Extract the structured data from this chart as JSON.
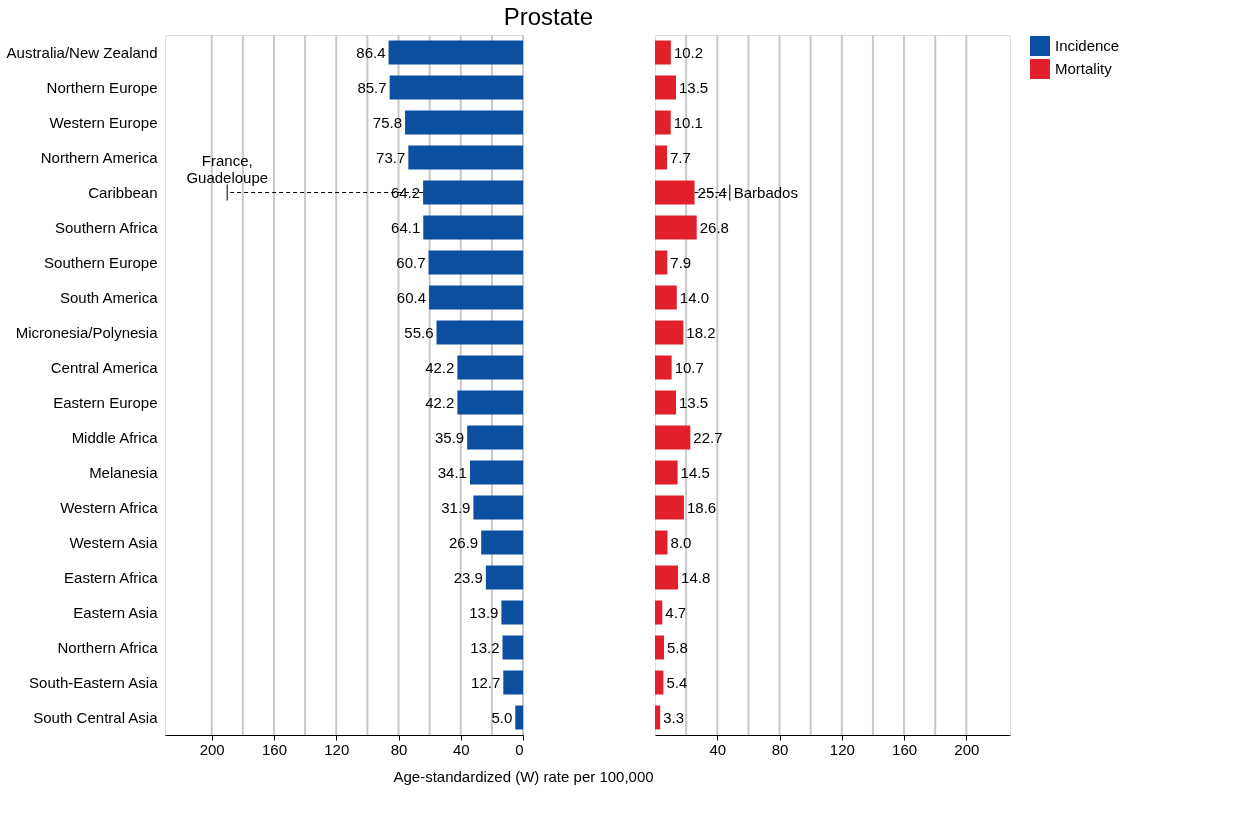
{
  "chart_data": [
    {
      "type": "bar",
      "orientation": "horizontal",
      "title": "Prostate",
      "xlabel": "Age-standardized (W) rate per 100,000",
      "categories": [
        "Australia/New Zealand",
        "Northern Europe",
        "Western Europe",
        "Northern America",
        "Caribbean",
        "Southern Africa",
        "Southern Europe",
        "South America",
        "Micronesia/Polynesia",
        "Central America",
        "Eastern Europe",
        "Middle Africa",
        "Melanesia",
        "Western Africa",
        "Western Asia",
        "Eastern Africa",
        "Eastern Asia",
        "Northern Africa",
        "South-Eastern Asia",
        "South Central Asia"
      ],
      "series": [
        {
          "name": "Incidence",
          "color": "#0b4f9f",
          "values": [
            86.4,
            85.7,
            75.8,
            73.7,
            64.2,
            64.1,
            60.7,
            60.4,
            55.6,
            42.2,
            42.2,
            35.9,
            34.1,
            31.9,
            26.9,
            23.9,
            13.9,
            13.2,
            12.7,
            5.0
          ],
          "value_labels": [
            "86.4",
            "85.7",
            "75.8",
            "73.7",
            "64.2",
            "64.1",
            "60.7",
            "60.4",
            "55.6",
            "42.2",
            "42.2",
            "35.9",
            "34.1",
            "31.9",
            "26.9",
            "23.9",
            "13.9",
            "13.2",
            "12.7",
            "5.0"
          ],
          "errors": [
            null,
            null,
            null,
            null,
            [
              64.2,
              190
            ],
            null,
            null,
            null,
            null,
            null,
            null,
            null,
            null,
            null,
            null,
            null,
            null,
            null,
            null,
            null
          ]
        }
      ],
      "annotations": [
        {
          "text": "France, Guadeloupe",
          "x": 190,
          "y": "Caribbean"
        }
      ],
      "xlim": [
        230,
        0
      ],
      "xticks": [
        200,
        {
          "value": 180,
          "label": null
        },
        160,
        {
          "value": 140,
          "label": null
        },
        120,
        {
          "value": 100,
          "label": null
        },
        80,
        {
          "value": 60,
          "label": null
        },
        40,
        {
          "value": 20,
          "label": null
        },
        0
      ],
      "grid": "x",
      "legend": "right"
    },
    {
      "type": "bar",
      "orientation": "horizontal",
      "categories": [
        "Australia/New Zealand",
        "Northern Europe",
        "Western Europe",
        "Northern America",
        "Caribbean",
        "Southern Africa",
        "Southern Europe",
        "South America",
        "Micronesia/Polynesia",
        "Central America",
        "Eastern Europe",
        "Middle Africa",
        "Melanesia",
        "Western Africa",
        "Western Asia",
        "Eastern Africa",
        "Eastern Asia",
        "Northern Africa",
        "South-Eastern Asia",
        "South Central Asia"
      ],
      "series": [
        {
          "name": "Mortality",
          "color": "#e1202c",
          "values": [
            10.2,
            13.5,
            10.1,
            7.7,
            25.4,
            26.8,
            7.9,
            14.0,
            18.2,
            10.7,
            13.5,
            22.7,
            14.5,
            18.6,
            8.0,
            14.8,
            4.7,
            5.8,
            5.4,
            3.3
          ],
          "value_labels": [
            "10.2",
            "13.5",
            "10.1",
            "7.7",
            "25.4",
            "26.8",
            "7.9",
            "14.0",
            "18.2",
            "10.7",
            "13.5",
            "22.7",
            "14.5",
            "18.6",
            "8.0",
            "14.8",
            "4.7",
            "5.8",
            "5.4",
            "3.3"
          ],
          "errors": [
            null,
            null,
            null,
            null,
            [
              25.4,
              48
            ],
            null,
            null,
            null,
            null,
            null,
            null,
            null,
            null,
            null,
            null,
            null,
            null,
            null,
            null,
            null
          ]
        }
      ],
      "annotations": [
        {
          "text": "Barbados",
          "x": 48,
          "y": "Caribbean"
        }
      ],
      "xlim": [
        0,
        228
      ],
      "xticks": [
        {
          "value": 20,
          "label": null
        },
        40,
        {
          "value": 60,
          "label": null
        },
        80,
        {
          "value": 100,
          "label": null
        },
        120,
        {
          "value": 140,
          "label": null
        },
        160,
        {
          "value": 180,
          "label": null
        },
        200
      ],
      "grid": "x",
      "tick_labels": "x",
      "legend": "right"
    }
  ]
}
